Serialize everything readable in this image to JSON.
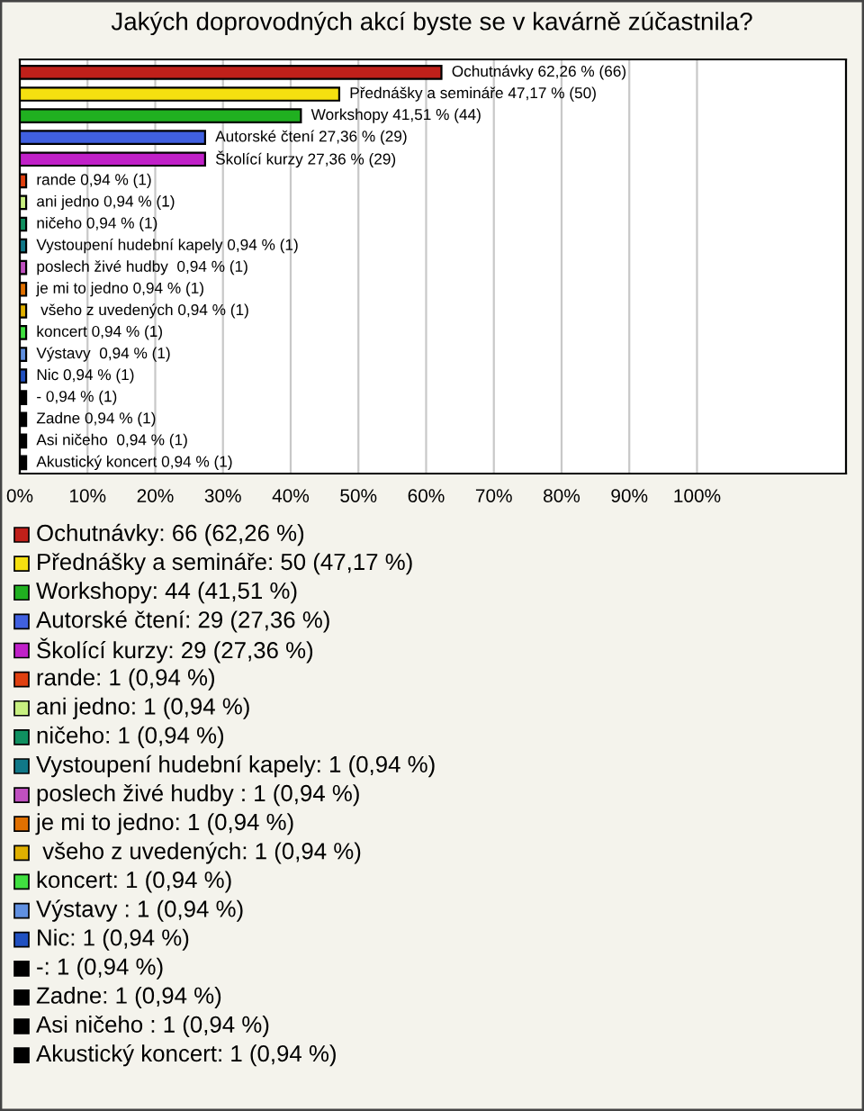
{
  "chart_data": {
    "type": "bar",
    "orientation": "horizontal",
    "title": "Jakých doprovodných akcí byste se v kavárně zúčastnila?",
    "categories": [
      null,
      null,
      null,
      null,
      null,
      null,
      null,
      null,
      null,
      null,
      null,
      null,
      null,
      null,
      null,
      null,
      null,
      null,
      null
    ],
    "values": [
      62.26,
      47.17,
      41.51,
      27.36,
      27.36,
      0.94,
      0.94,
      0.94,
      0.94,
      0.94,
      0.94,
      0.94,
      0.94,
      0.94,
      0.94,
      0.94,
      0.94,
      0.94,
      0.94
    ],
    "colors": [
      "#c0201a",
      "#f5e010",
      "#20b020",
      "#4060e0",
      "#c020c8",
      "#e04010",
      "#c8f080",
      "#109060",
      "#107888",
      "#c050c0",
      "#e07000",
      "#e0b000",
      "#40e040",
      "#6090e0",
      "#2050c0",
      "#000000",
      "#000000",
      "#000000",
      "#000000"
    ],
    "value_labels": [
      "Ochutnávky 62,26 % (66)",
      "Přednášky a semináře 47,17 % (50)",
      "Workshopy 41,51 % (44)",
      "Autorské čtení 27,36 % (29)",
      "Školící kurzy 27,36 % (29)",
      "rande 0,94 % (1)",
      "ani jedno 0,94 % (1)",
      "ničeho 0,94 % (1)",
      "Vystoupení hudební kapely 0,94 % (1)",
      "poslech živé hudby  0,94 % (1)",
      "je mi to jedno 0,94 % (1)",
      " všeho z uvedených 0,94 % (1)",
      "koncert 0,94 % (1)",
      "Výstavy  0,94 % (1)",
      "Nic 0,94 % (1)",
      "- 0,94 % (1)",
      "Zadne 0,94 % (1)",
      "Asi ničeho  0,94 % (1)",
      "Akustický koncert 0,94 % (1)"
    ],
    "annotations": [
      "Ochutnávky: 66 (62,26 %)",
      "Přednášky a semináře: 50 (47,17 %)",
      "Workshopy: 44 (41,51 %)",
      "Autorské čtení: 29 (27,36 %)",
      "Školící kurzy: 29 (27,36 %)",
      "rande: 1 (0,94 %)",
      "ani jedno: 1 (0,94 %)",
      "ničeho: 1 (0,94 %)",
      "Vystoupení hudební kapely: 1 (0,94 %)",
      "poslech živé hudby : 1 (0,94 %)",
      "je mi to jedno: 1 (0,94 %)",
      " všeho z uvedených: 1 (0,94 %)",
      "koncert: 1 (0,94 %)",
      "Výstavy : 1 (0,94 %)",
      "Nic: 1 (0,94 %)",
      "-: 1 (0,94 %)",
      "Zadne: 1 (0,94 %)",
      "Asi ničeho : 1 (0,94 %)",
      "Akustický koncert: 1 (0,94 %)"
    ],
    "xlim": [
      0,
      122
    ],
    "xticks": [
      {
        "value": 0,
        "label": "0%"
      },
      {
        "value": 10,
        "label": "10%"
      },
      {
        "value": 20,
        "label": "20%"
      },
      {
        "value": 30,
        "label": "30%"
      },
      {
        "value": 40,
        "label": "40%"
      },
      {
        "value": 50,
        "label": "50%"
      },
      {
        "value": 60,
        "label": "60%"
      },
      {
        "value": 70,
        "label": "70%"
      },
      {
        "value": 80,
        "label": "80%"
      },
      {
        "value": 90,
        "label": "90%"
      },
      {
        "value": 100,
        "label": "100%"
      }
    ],
    "grid": "x",
    "tick_labels": "x"
  }
}
